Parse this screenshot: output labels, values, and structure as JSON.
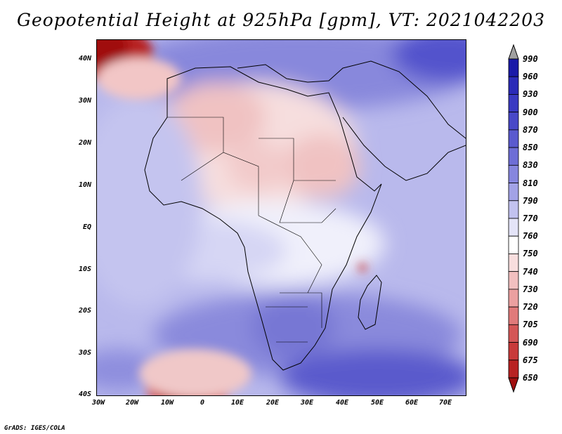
{
  "title": "Geopotential Height at 925hPa [gpm], VT: 2021042203",
  "lat_ticks": [
    "40N",
    "30N",
    "20N",
    "10N",
    "EQ",
    "10S",
    "20S",
    "30S",
    "40S"
  ],
  "lon_ticks": [
    "30W",
    "20W",
    "10W",
    "0",
    "10E",
    "20E",
    "30E",
    "40E",
    "50E",
    "60E",
    "70E"
  ],
  "colorbar": {
    "levels": [
      "990",
      "960",
      "930",
      "900",
      "870",
      "850",
      "830",
      "810",
      "790",
      "770",
      "760",
      "750",
      "740",
      "730",
      "720",
      "705",
      "690",
      "675",
      "650"
    ],
    "colors": [
      "#000099",
      "#1a1aa8",
      "#2b2bb8",
      "#3a3ac2",
      "#4848c8",
      "#5a5acf",
      "#6e6ed6",
      "#8686de",
      "#a2a2e6",
      "#c2c2ef",
      "#e4e4f8",
      "#ffffff",
      "#f8dede",
      "#f2c0c0",
      "#eba0a0",
      "#e07a7a",
      "#d45656",
      "#c83a3a",
      "#b82222",
      "#a00f0f"
    ]
  },
  "footer": "GrADS: IGES/COLA"
}
